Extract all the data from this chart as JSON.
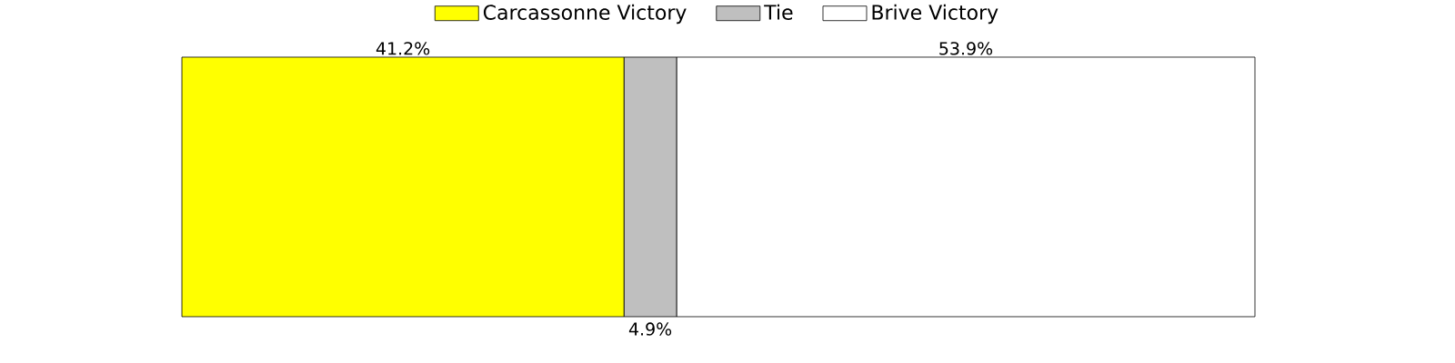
{
  "chart_data": {
    "type": "bar",
    "orientation": "horizontal",
    "stacked": true,
    "categories": [
      null
    ],
    "tick_labels": false,
    "legend": "top",
    "series": [
      {
        "name": "Carcassonne Victory",
        "color": "#ffff00",
        "values": [
          41.2
        ],
        "value_labels": [
          "41.2%"
        ]
      },
      {
        "name": "Tie",
        "color": "#bfbfbf",
        "values": [
          4.9
        ],
        "value_labels": [
          "4.9%"
        ]
      },
      {
        "name": "Brive Victory",
        "color": "#ffffff",
        "values": [
          53.9
        ],
        "value_labels": [
          "53.9%"
        ]
      }
    ]
  }
}
